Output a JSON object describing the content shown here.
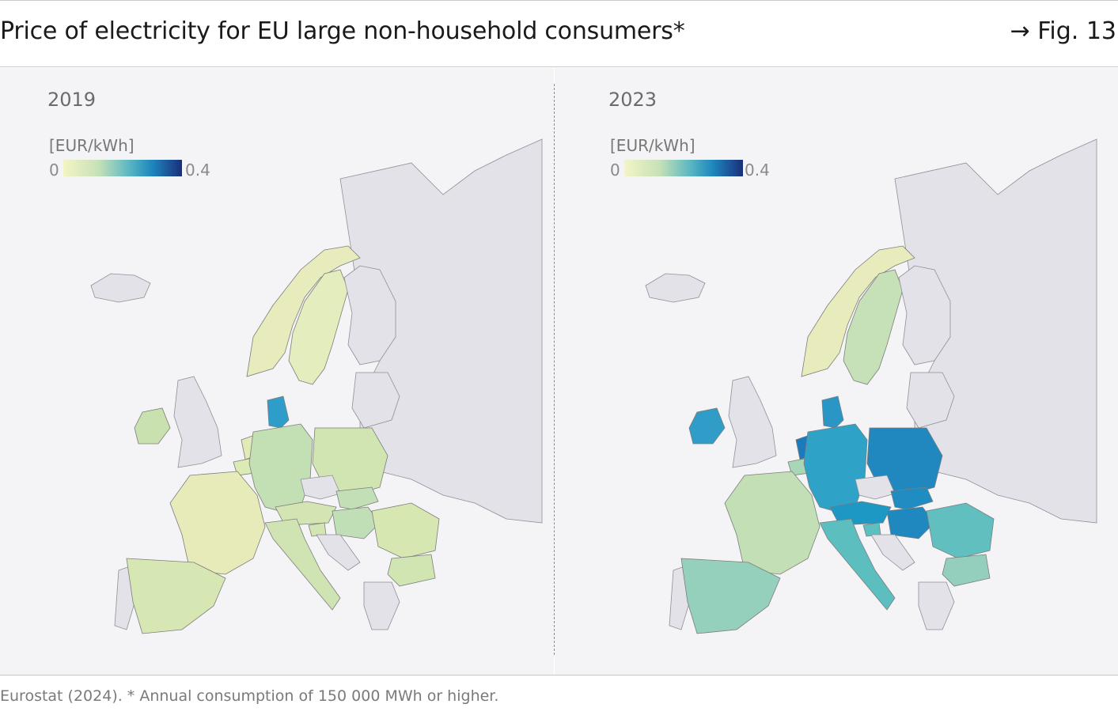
{
  "header": {
    "title": "Price of electricity for EU large non-household consumers*",
    "figure_ref": "→ Fig. 13"
  },
  "legend": {
    "unit": "[EUR/kWh]",
    "min_label": "0",
    "max_label": "0.4"
  },
  "colors": {
    "background": "#f4f4f6",
    "no_data": "#e2e2e8",
    "scale": [
      "#f4f4c6",
      "#c6e1b7",
      "#5cb8c2",
      "#1d86be",
      "#1a2e7a"
    ]
  },
  "panels": [
    {
      "year": "2019",
      "shading": {
        "Norway": "#e8ecbc",
        "Sweden": "#e4edbd",
        "Finland": "#e2e2e8",
        "Denmark": "#2f9dc9",
        "Ireland": "#c9e1ae",
        "United Kingdom": "#e2e2e8",
        "Iceland": "#e2e2e8",
        "France": "#e6ebb9",
        "Spain": "#d6e7b3",
        "Portugal": "#e2e2e8",
        "Germany": "#c3dfb4",
        "Poland": "#d0e5b1",
        "Czechia": "#e2e2e8",
        "Austria": "#d2e5b2",
        "Italy": "#cfe4b2",
        "Romania": "#d7e7b2",
        "Bulgaria": "#d0e5b1",
        "Greece": "#e2e2e8",
        "Hungary": "#c0dfb6",
        "Netherlands": "#e2ebb8",
        "Belgium": "#dceab6",
        "Slovakia": "#c2dfb5",
        "Slovenia": "#d2e5b2",
        "Croatia": "#e2e2e8",
        "Baltics": "#e2e2e8",
        "Eastern neighbours": "#e2e2e8"
      }
    },
    {
      "year": "2023",
      "shading": {
        "Norway": "#e8ecbc",
        "Sweden": "#c6e1b7",
        "Finland": "#e2e2e8",
        "Denmark": "#2a96c6",
        "Ireland": "#2f9dc8",
        "United Kingdom": "#e2e2e8",
        "Iceland": "#e2e2e8",
        "France": "#c2dfb5",
        "Spain": "#94d0bc",
        "Portugal": "#e2e2e8",
        "Germany": "#2fa3c7",
        "Poland": "#2088bf",
        "Czechia": "#e2e2e8",
        "Austria": "#1d98c5",
        "Italy": "#5dbec0",
        "Romania": "#62bfc0",
        "Bulgaria": "#93cfbc",
        "Greece": "#e2e2e8",
        "Hungary": "#1f88bf",
        "Netherlands": "#1a7abc",
        "Belgium": "#a8d7b8",
        "Slovakia": "#1f8dc1",
        "Slovenia": "#5ebfc0",
        "Croatia": "#e2e2e8",
        "Baltics": "#e2e2e8",
        "Eastern neighbours": "#e2e2e8"
      }
    }
  ],
  "footer": {
    "source": "Eurostat (2024). * Annual consumption of 150 000 MWh or higher."
  }
}
